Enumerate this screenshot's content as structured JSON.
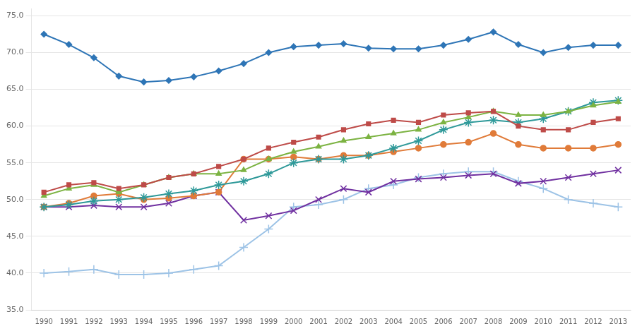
{
  "chart_data": {
    "type": "line",
    "x": [
      1990,
      1991,
      1992,
      1993,
      1994,
      1995,
      1996,
      1997,
      1998,
      1999,
      2000,
      2001,
      2002,
      2003,
      2004,
      2005,
      2006,
      2007,
      2008,
      2009,
      2010,
      2011,
      2012,
      2013
    ],
    "series": [
      {
        "color": "#2E75B6",
        "marker": "diamond",
        "values": [
          72.5,
          71.1,
          69.3,
          66.8,
          66.0,
          66.2,
          66.7,
          67.5,
          68.5,
          70.0,
          70.8,
          71.0,
          71.2,
          70.6,
          70.5,
          70.5,
          71.0,
          71.8,
          72.8,
          71.1,
          70.0,
          70.7,
          71.0,
          71.0
        ]
      },
      {
        "color": "#BE4B48",
        "marker": "square",
        "values": [
          51.0,
          52.0,
          52.3,
          51.5,
          52.0,
          53.0,
          53.5,
          54.5,
          55.5,
          57.0,
          57.8,
          58.5,
          59.5,
          60.3,
          60.8,
          60.5,
          61.5,
          61.8,
          62.0,
          60.0,
          59.5,
          59.5,
          60.5,
          61.0
        ]
      },
      {
        "color": "#7CB342",
        "marker": "triangle",
        "values": [
          50.5,
          51.5,
          52.0,
          51.0,
          52.0,
          53.0,
          53.5,
          53.5,
          54.0,
          55.5,
          56.5,
          57.2,
          58.0,
          58.5,
          59.0,
          59.5,
          60.5,
          61.2,
          62.0,
          61.5,
          61.5,
          62.0,
          62.8,
          63.3
        ]
      },
      {
        "color": "#2E9999",
        "marker": "star",
        "values": [
          49.0,
          49.3,
          49.8,
          50.0,
          50.3,
          50.8,
          51.2,
          52.0,
          52.5,
          53.5,
          55.0,
          55.5,
          55.5,
          56.0,
          57.0,
          58.0,
          59.5,
          60.5,
          60.8,
          60.5,
          61.0,
          62.0,
          63.2,
          63.5
        ]
      },
      {
        "color": "#E07B39",
        "marker": "circle",
        "values": [
          49.0,
          49.5,
          50.5,
          50.8,
          50.0,
          50.2,
          50.5,
          51.0,
          55.5,
          55.5,
          55.8,
          55.5,
          56.0,
          56.0,
          56.5,
          57.0,
          57.5,
          57.8,
          59.0,
          57.5,
          57.0,
          57.0,
          57.0,
          57.5
        ]
      },
      {
        "color": "#7030A0",
        "marker": "x",
        "values": [
          49.0,
          49.0,
          49.2,
          49.0,
          49.0,
          49.5,
          50.5,
          51.0,
          47.2,
          47.8,
          48.5,
          50.0,
          51.5,
          51.0,
          52.5,
          52.8,
          53.0,
          53.3,
          53.5,
          52.2,
          52.5,
          53.0,
          53.5,
          54.0
        ]
      },
      {
        "color": "#9DC3E6",
        "marker": "plus",
        "values": [
          40.0,
          40.2,
          40.5,
          39.8,
          39.8,
          40.0,
          40.5,
          41.0,
          43.5,
          46.0,
          49.0,
          49.3,
          50.0,
          51.5,
          52.0,
          53.0,
          53.5,
          53.8,
          53.8,
          52.5,
          51.5,
          50.0,
          49.5,
          49.0
        ]
      }
    ],
    "xlim": [
      1989.5,
      2013.5
    ],
    "xticks": [
      1990,
      1991,
      1992,
      1993,
      1994,
      1995,
      1996,
      1997,
      1998,
      1999,
      2000,
      2001,
      2002,
      2003,
      2004,
      2005,
      2006,
      2007,
      2008,
      2009,
      2010,
      2011,
      2012,
      2013
    ],
    "ylim": [
      35.0,
      76.0
    ],
    "yticks": [
      {
        "value": 35,
        "label": "35.0"
      },
      {
        "value": 40,
        "label": "40.0"
      },
      {
        "value": 45,
        "label": "45.0"
      },
      {
        "value": 50,
        "label": "50.0"
      },
      {
        "value": 55,
        "label": "55.0"
      },
      {
        "value": 60,
        "label": "60.0"
      },
      {
        "value": 65,
        "label": "65.0"
      },
      {
        "value": 70,
        "label": "70.0"
      },
      {
        "value": 75,
        "label": "75.0"
      }
    ],
    "grid": "y"
  }
}
